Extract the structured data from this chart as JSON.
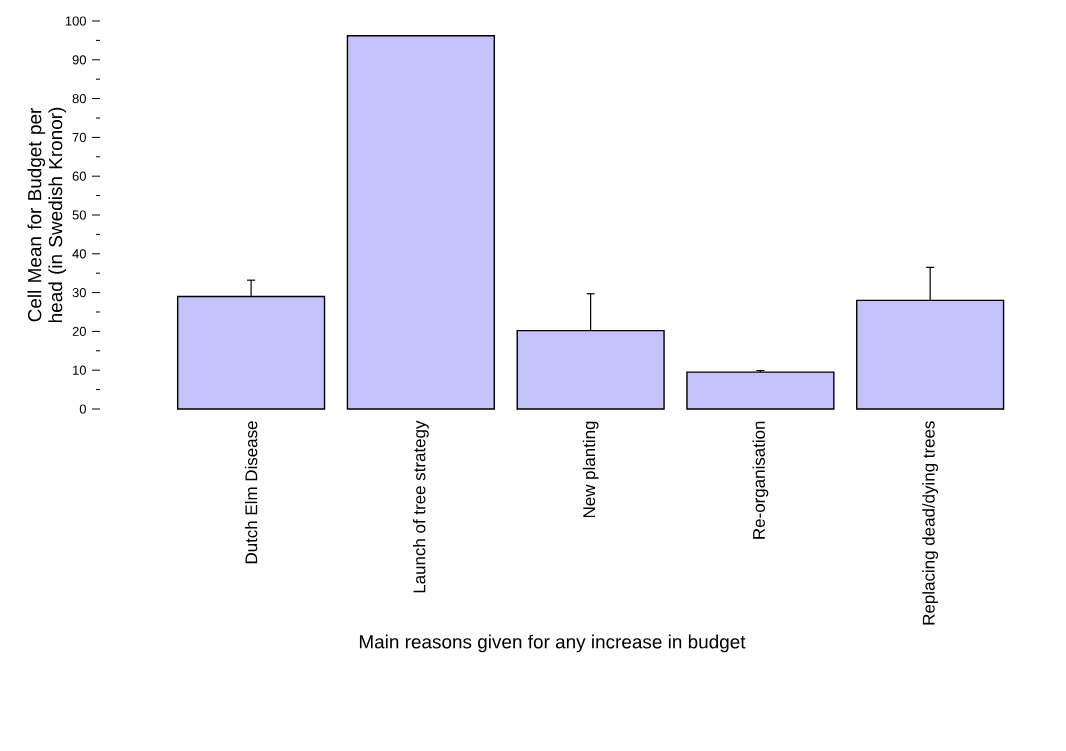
{
  "chart_data": {
    "type": "bar",
    "xlabel": "Main reasons given for any increase in budget",
    "ylabel": "Cell Mean for Budget per head (in Swedish Kronor)",
    "categories": [
      "Dutch Elm Disease",
      "Launch of tree strategy",
      "New planting",
      "Re-organisation",
      "Replacing dead/dying trees"
    ],
    "values": [
      29.0,
      96.2,
      20.2,
      9.5,
      28.0
    ],
    "errors": [
      [
        29.0,
        33.2
      ],
      null,
      [
        20.2,
        29.7
      ],
      [
        9.5,
        9.9
      ],
      [
        28.0,
        36.5
      ]
    ],
    "color": "#c3c3fa",
    "ylim": [
      0,
      100
    ],
    "yticks": [
      0,
      10,
      20,
      30,
      40,
      50,
      60,
      70,
      80,
      90,
      100
    ],
    "grid": false
  }
}
